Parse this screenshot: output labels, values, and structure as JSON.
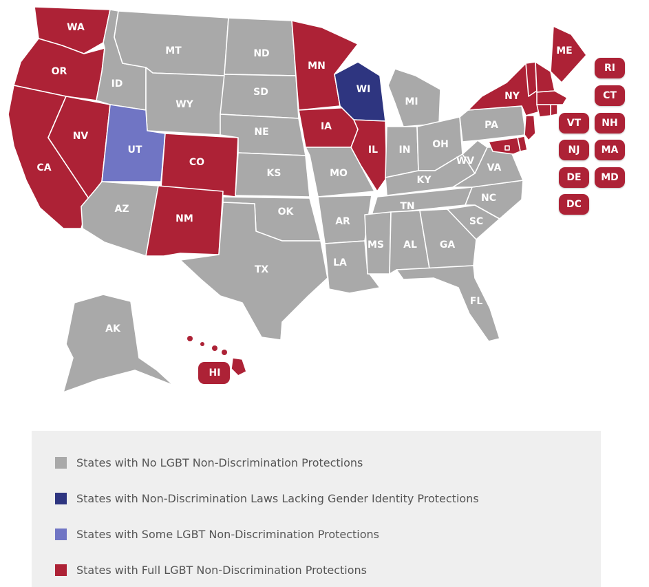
{
  "colors": {
    "none": "#a9a9a9",
    "lacking_gi": "#2e3580",
    "some": "#7075c4",
    "full": "#ad2236"
  },
  "legend": [
    {
      "key": "none",
      "label": "States with No LGBT Non-Discrimination Protections"
    },
    {
      "key": "lacking_gi",
      "label": "States with Non-Discrimination Laws Lacking Gender Identity Protections"
    },
    {
      "key": "some",
      "label": "States with Some LGBT Non-Discrimination Protections"
    },
    {
      "key": "full",
      "label": "States with Full LGBT Non-Discrimination Protections"
    }
  ],
  "states": [
    {
      "abbr": "WA",
      "status": "full"
    },
    {
      "abbr": "OR",
      "status": "full"
    },
    {
      "abbr": "CA",
      "status": "full"
    },
    {
      "abbr": "NV",
      "status": "full"
    },
    {
      "abbr": "ID",
      "status": "none"
    },
    {
      "abbr": "MT",
      "status": "none"
    },
    {
      "abbr": "WY",
      "status": "none"
    },
    {
      "abbr": "UT",
      "status": "some"
    },
    {
      "abbr": "CO",
      "status": "full"
    },
    {
      "abbr": "AZ",
      "status": "none"
    },
    {
      "abbr": "NM",
      "status": "full"
    },
    {
      "abbr": "ND",
      "status": "none"
    },
    {
      "abbr": "SD",
      "status": "none"
    },
    {
      "abbr": "NE",
      "status": "none"
    },
    {
      "abbr": "KS",
      "status": "none"
    },
    {
      "abbr": "OK",
      "status": "none"
    },
    {
      "abbr": "TX",
      "status": "none"
    },
    {
      "abbr": "MN",
      "status": "full"
    },
    {
      "abbr": "IA",
      "status": "full"
    },
    {
      "abbr": "MO",
      "status": "none"
    },
    {
      "abbr": "AR",
      "status": "none"
    },
    {
      "abbr": "LA",
      "status": "none"
    },
    {
      "abbr": "WI",
      "status": "lacking_gi"
    },
    {
      "abbr": "IL",
      "status": "full"
    },
    {
      "abbr": "MI",
      "status": "none"
    },
    {
      "abbr": "IN",
      "status": "none"
    },
    {
      "abbr": "OH",
      "status": "none"
    },
    {
      "abbr": "KY",
      "status": "none"
    },
    {
      "abbr": "TN",
      "status": "none"
    },
    {
      "abbr": "MS",
      "status": "none"
    },
    {
      "abbr": "AL",
      "status": "none"
    },
    {
      "abbr": "GA",
      "status": "none"
    },
    {
      "abbr": "FL",
      "status": "none"
    },
    {
      "abbr": "SC",
      "status": "none"
    },
    {
      "abbr": "NC",
      "status": "none"
    },
    {
      "abbr": "VA",
      "status": "none"
    },
    {
      "abbr": "WV",
      "status": "none"
    },
    {
      "abbr": "PA",
      "status": "none"
    },
    {
      "abbr": "NY",
      "status": "full"
    },
    {
      "abbr": "ME",
      "status": "full"
    },
    {
      "abbr": "AK",
      "status": "none"
    },
    {
      "abbr": "HI",
      "status": "full"
    }
  ],
  "northeast_callouts": [
    {
      "abbr": "RI",
      "status": "full"
    },
    {
      "abbr": "CT",
      "status": "full"
    },
    {
      "abbr": "VT",
      "status": "full"
    },
    {
      "abbr": "NH",
      "status": "full"
    },
    {
      "abbr": "NJ",
      "status": "full"
    },
    {
      "abbr": "MA",
      "status": "full"
    },
    {
      "abbr": "DE",
      "status": "full"
    },
    {
      "abbr": "MD",
      "status": "full"
    },
    {
      "abbr": "DC",
      "status": "full"
    }
  ]
}
